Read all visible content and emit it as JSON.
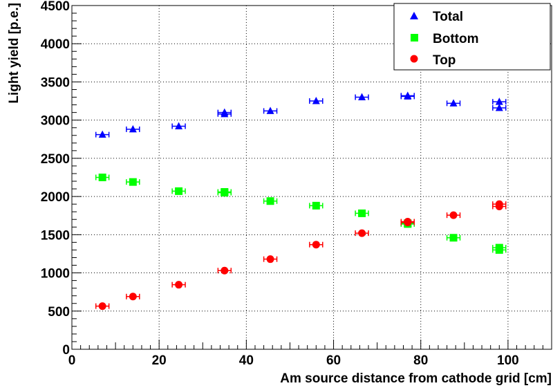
{
  "chart_data": {
    "type": "scatter",
    "xlabel": "Am source distance from cathode grid [cm]",
    "ylabel": "Light yield [p.e.]",
    "xlim": [
      0,
      110
    ],
    "ylim": [
      0,
      4500
    ],
    "x_ticks": [
      "0",
      "20",
      "40",
      "60",
      "80",
      "100"
    ],
    "y_ticks": [
      "0",
      "500",
      "1000",
      "1500",
      "2000",
      "2500",
      "3000",
      "3500",
      "4000",
      "4500"
    ],
    "grid": true,
    "legend_position": "top-right",
    "x_error": 1.5,
    "series": [
      {
        "name": "Total",
        "marker": "triangle",
        "color": "#0000ff",
        "points": [
          {
            "x": 7,
            "y": 2810
          },
          {
            "x": 14,
            "y": 2880
          },
          {
            "x": 24.5,
            "y": 2920
          },
          {
            "x": 35,
            "y": 3080
          },
          {
            "x": 35,
            "y": 3100
          },
          {
            "x": 45.5,
            "y": 3120
          },
          {
            "x": 56,
            "y": 3250
          },
          {
            "x": 66.5,
            "y": 3300
          },
          {
            "x": 77,
            "y": 3310
          },
          {
            "x": 77,
            "y": 3320
          },
          {
            "x": 87.5,
            "y": 3220
          },
          {
            "x": 98,
            "y": 3160
          },
          {
            "x": 98,
            "y": 3240
          }
        ]
      },
      {
        "name": "Bottom",
        "marker": "square",
        "color": "#00ff00",
        "points": [
          {
            "x": 7,
            "y": 2250
          },
          {
            "x": 14,
            "y": 2190
          },
          {
            "x": 24.5,
            "y": 2070
          },
          {
            "x": 35,
            "y": 2060
          },
          {
            "x": 35,
            "y": 2050
          },
          {
            "x": 45.5,
            "y": 1940
          },
          {
            "x": 56,
            "y": 1880
          },
          {
            "x": 66.5,
            "y": 1780
          },
          {
            "x": 77,
            "y": 1650
          },
          {
            "x": 77,
            "y": 1640
          },
          {
            "x": 87.5,
            "y": 1460
          },
          {
            "x": 98,
            "y": 1330
          },
          {
            "x": 98,
            "y": 1300
          }
        ]
      },
      {
        "name": "Top",
        "marker": "circle",
        "color": "#ff0000",
        "points": [
          {
            "x": 7,
            "y": 565
          },
          {
            "x": 14,
            "y": 690
          },
          {
            "x": 24.5,
            "y": 845
          },
          {
            "x": 35,
            "y": 1030
          },
          {
            "x": 45.5,
            "y": 1180
          },
          {
            "x": 56,
            "y": 1370
          },
          {
            "x": 66.5,
            "y": 1520
          },
          {
            "x": 77,
            "y": 1660
          },
          {
            "x": 77,
            "y": 1670
          },
          {
            "x": 87.5,
            "y": 1755
          },
          {
            "x": 98,
            "y": 1870
          },
          {
            "x": 98,
            "y": 1900
          }
        ]
      }
    ]
  }
}
